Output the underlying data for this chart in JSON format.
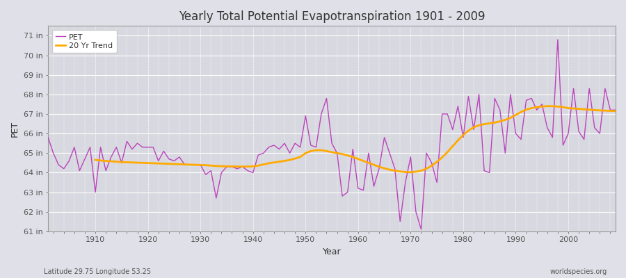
{
  "title": "Yearly Total Potential Evapotranspiration 1901 - 2009",
  "xlabel": "Year",
  "ylabel": "PET",
  "bottom_left_label": "Latitude 29.75 Longitude 53.25",
  "bottom_right_label": "worldspecies.org",
  "bg_color": "#e0e0e8",
  "plot_bg_color": "#d8d8e0",
  "ylim": [
    61,
    71.5
  ],
  "xlim": [
    1901,
    2009
  ],
  "yticks": [
    61,
    62,
    63,
    64,
    65,
    66,
    67,
    68,
    69,
    70,
    71
  ],
  "ytick_labels": [
    "61 in",
    "62 in",
    "63 in",
    "64 in",
    "65 in",
    "66 in",
    "67 in",
    "68 in",
    "69 in",
    "70 in",
    "71 in"
  ],
  "pet_color": "#bb44bb",
  "trend_color": "#ffaa00",
  "pet_linewidth": 1.0,
  "trend_linewidth": 2.0,
  "years": [
    1901,
    1902,
    1903,
    1904,
    1905,
    1906,
    1907,
    1908,
    1909,
    1910,
    1911,
    1912,
    1913,
    1914,
    1915,
    1916,
    1917,
    1918,
    1919,
    1920,
    1921,
    1922,
    1923,
    1924,
    1925,
    1926,
    1927,
    1928,
    1929,
    1930,
    1931,
    1932,
    1933,
    1934,
    1935,
    1936,
    1937,
    1938,
    1939,
    1940,
    1941,
    1942,
    1943,
    1944,
    1945,
    1946,
    1947,
    1948,
    1949,
    1950,
    1951,
    1952,
    1953,
    1954,
    1955,
    1956,
    1957,
    1958,
    1959,
    1960,
    1961,
    1962,
    1963,
    1964,
    1965,
    1966,
    1967,
    1968,
    1969,
    1970,
    1971,
    1972,
    1973,
    1974,
    1975,
    1976,
    1977,
    1978,
    1979,
    1980,
    1981,
    1982,
    1983,
    1984,
    1985,
    1986,
    1987,
    1988,
    1989,
    1990,
    1991,
    1992,
    1993,
    1994,
    1995,
    1996,
    1997,
    1998,
    1999,
    2000,
    2001,
    2002,
    2003,
    2004,
    2005,
    2006,
    2007,
    2008,
    2009
  ],
  "pet_values": [
    65.8,
    65.0,
    64.4,
    64.2,
    64.6,
    65.3,
    64.1,
    64.7,
    65.3,
    63.0,
    65.3,
    64.1,
    64.8,
    65.3,
    64.5,
    65.6,
    65.2,
    65.5,
    65.3,
    65.3,
    65.3,
    64.6,
    65.1,
    64.7,
    64.6,
    64.8,
    64.4,
    64.4,
    64.4,
    64.4,
    63.9,
    64.1,
    62.7,
    64.0,
    64.3,
    64.3,
    64.2,
    64.3,
    64.1,
    64.0,
    64.9,
    65.0,
    65.3,
    65.4,
    65.2,
    65.5,
    65.0,
    65.5,
    65.3,
    66.9,
    65.4,
    65.3,
    67.0,
    67.8,
    65.5,
    65.0,
    62.8,
    63.0,
    65.2,
    63.2,
    63.1,
    65.0,
    63.3,
    64.2,
    65.8,
    65.0,
    64.2,
    61.5,
    63.5,
    64.8,
    62.0,
    61.1,
    65.0,
    64.5,
    63.5,
    67.0,
    67.0,
    66.2,
    67.4,
    65.8,
    67.9,
    66.2,
    68.0,
    64.1,
    64.0,
    67.8,
    67.2,
    65.0,
    68.0,
    66.0,
    65.7,
    67.7,
    67.8,
    67.2,
    67.5,
    66.3,
    65.8,
    70.8,
    65.4,
    66.0,
    68.3,
    66.1,
    65.7,
    68.3,
    66.3,
    66.0,
    68.3,
    67.2,
    67.2
  ],
  "trend_years": [
    1910,
    1911,
    1912,
    1913,
    1914,
    1915,
    1916,
    1917,
    1918,
    1919,
    1920,
    1921,
    1922,
    1923,
    1924,
    1925,
    1926,
    1927,
    1928,
    1929,
    1930,
    1931,
    1932,
    1933,
    1934,
    1935,
    1936,
    1937,
    1938,
    1939,
    1940,
    1941,
    1942,
    1943,
    1944,
    1945,
    1946,
    1947,
    1948,
    1949,
    1950,
    1951,
    1952,
    1953,
    1954,
    1955,
    1956,
    1957,
    1958,
    1959,
    1960,
    1961,
    1962,
    1963,
    1964,
    1965,
    1966,
    1967,
    1968,
    1969,
    1970,
    1971,
    1972,
    1973,
    1974,
    1975,
    1976,
    1977,
    1978,
    1979,
    1980,
    1981,
    1982,
    1983,
    1984,
    1985,
    1986,
    1987,
    1988,
    1989,
    1990,
    1991,
    1992,
    1993,
    1994,
    1995,
    1996,
    1997,
    1998,
    1999,
    2000,
    2001,
    2002,
    2003,
    2004,
    2005,
    2006,
    2007,
    2008,
    2009
  ],
  "trend_values": [
    64.65,
    64.62,
    64.6,
    64.58,
    64.56,
    64.54,
    64.53,
    64.52,
    64.51,
    64.5,
    64.49,
    64.48,
    64.47,
    64.46,
    64.45,
    64.44,
    64.43,
    64.42,
    64.41,
    64.4,
    64.39,
    64.38,
    64.36,
    64.34,
    64.33,
    64.32,
    64.32,
    64.31,
    64.31,
    64.31,
    64.32,
    64.36,
    64.42,
    64.48,
    64.52,
    64.56,
    64.6,
    64.65,
    64.72,
    64.8,
    65.0,
    65.1,
    65.15,
    65.15,
    65.1,
    65.05,
    65.0,
    64.95,
    64.88,
    64.8,
    64.7,
    64.6,
    64.5,
    64.4,
    64.3,
    64.22,
    64.15,
    64.1,
    64.06,
    64.03,
    64.02,
    64.05,
    64.1,
    64.2,
    64.35,
    64.55,
    64.78,
    65.05,
    65.35,
    65.65,
    65.92,
    66.15,
    66.32,
    66.42,
    66.48,
    66.52,
    66.56,
    66.62,
    66.7,
    66.8,
    66.95,
    67.1,
    67.22,
    67.3,
    67.35,
    67.38,
    67.4,
    67.4,
    67.38,
    67.35,
    67.3,
    67.28,
    67.26,
    67.24,
    67.22,
    67.2,
    67.18,
    67.17,
    67.16,
    67.15
  ]
}
